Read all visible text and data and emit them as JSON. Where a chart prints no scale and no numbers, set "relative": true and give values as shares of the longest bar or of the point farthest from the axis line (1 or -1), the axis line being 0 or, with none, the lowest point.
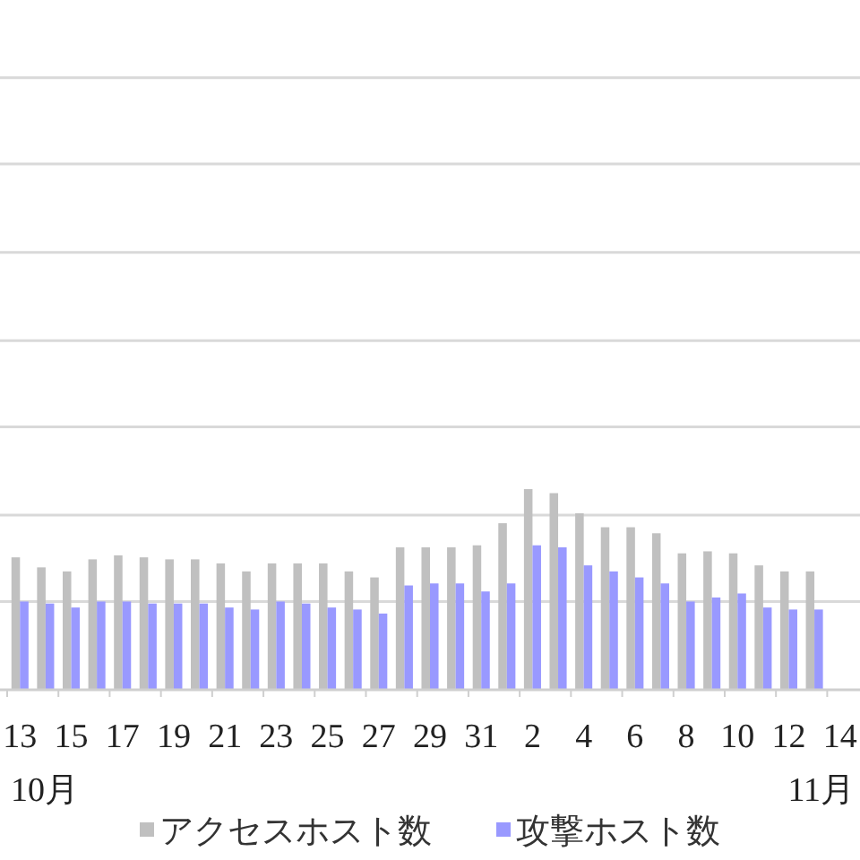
{
  "chart_data": {
    "type": "bar",
    "relative": true,
    "categories": [
      "13",
      null,
      "15",
      null,
      "17",
      null,
      "19",
      null,
      "21",
      null,
      "23",
      null,
      "25",
      null,
      "27",
      null,
      "29",
      null,
      "31",
      null,
      "2",
      null,
      "4",
      null,
      "6",
      null,
      "8",
      null,
      "10",
      null,
      "12",
      null,
      "14"
    ],
    "series": [
      {
        "name": "アクセスホスト数",
        "color": "#c0c0c0",
        "values": [
          0.66,
          0.61,
          0.59,
          0.65,
          0.67,
          0.66,
          0.65,
          0.65,
          0.63,
          0.59,
          0.63,
          0.63,
          0.63,
          0.59,
          0.56,
          0.71,
          0.71,
          0.71,
          0.72,
          0.83,
          1,
          0.98,
          0.88,
          0.81,
          0.81,
          0.78,
          0.68,
          0.69,
          0.68,
          0.62,
          0.59,
          0.59,
          null
        ]
      },
      {
        "name": "攻撃ホスト数",
        "color": "#9999ff",
        "values": [
          0.44,
          0.43,
          0.41,
          0.44,
          0.44,
          0.43,
          0.43,
          0.43,
          0.41,
          0.4,
          0.44,
          0.43,
          0.41,
          0.4,
          0.38,
          0.52,
          0.53,
          0.53,
          0.49,
          0.53,
          0.72,
          0.71,
          0.62,
          0.59,
          0.56,
          0.53,
          0.44,
          0.46,
          0.48,
          0.41,
          0.4,
          0.4,
          null
        ]
      }
    ],
    "ref_lines": [
      {
        "axis": "y",
        "value": 0.44,
        "color": "#d9d9d9"
      },
      {
        "axis": "y",
        "value": 0.87,
        "color": "#d9d9d9"
      },
      {
        "axis": "y",
        "value": 1.31,
        "color": "#d9d9d9"
      },
      {
        "axis": "y",
        "value": 1.74,
        "color": "#d9d9d9"
      },
      {
        "axis": "y",
        "value": 2.18,
        "color": "#d9d9d9"
      },
      {
        "axis": "y",
        "value": 2.62,
        "color": "#d9d9d9"
      },
      {
        "axis": "y",
        "value": 3.05,
        "color": "#d9d9d9"
      }
    ],
    "annotations": [
      "10月",
      "11月"
    ],
    "legend": "bottom",
    "tick_labels": "x"
  }
}
